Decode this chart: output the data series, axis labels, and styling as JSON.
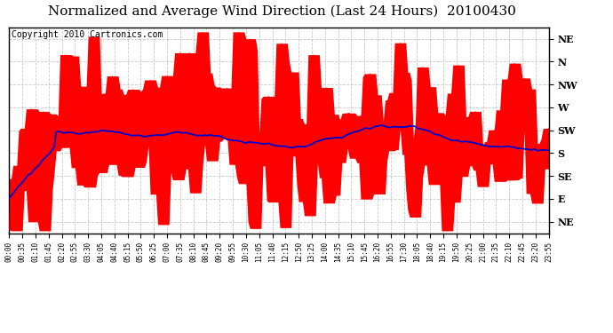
{
  "title": "Normalized and Average Wind Direction (Last 24 Hours)  20100430",
  "copyright": "Copyright 2010 Cartronics.com",
  "ytick_labels": [
    "NE",
    "N",
    "NW",
    "W",
    "SW",
    "S",
    "SE",
    "E",
    "NE"
  ],
  "ytick_values": [
    9,
    8,
    7,
    6,
    5,
    4,
    3,
    2,
    1
  ],
  "ylim": [
    0.5,
    9.5
  ],
  "background_color": "#ffffff",
  "plot_bg_color": "#ffffff",
  "grid_color": "#bbbbbb",
  "red_color": "#ff0000",
  "blue_color": "#0000cc",
  "title_fontsize": 11,
  "copyright_fontsize": 7,
  "n_points": 288,
  "seed": 12345
}
